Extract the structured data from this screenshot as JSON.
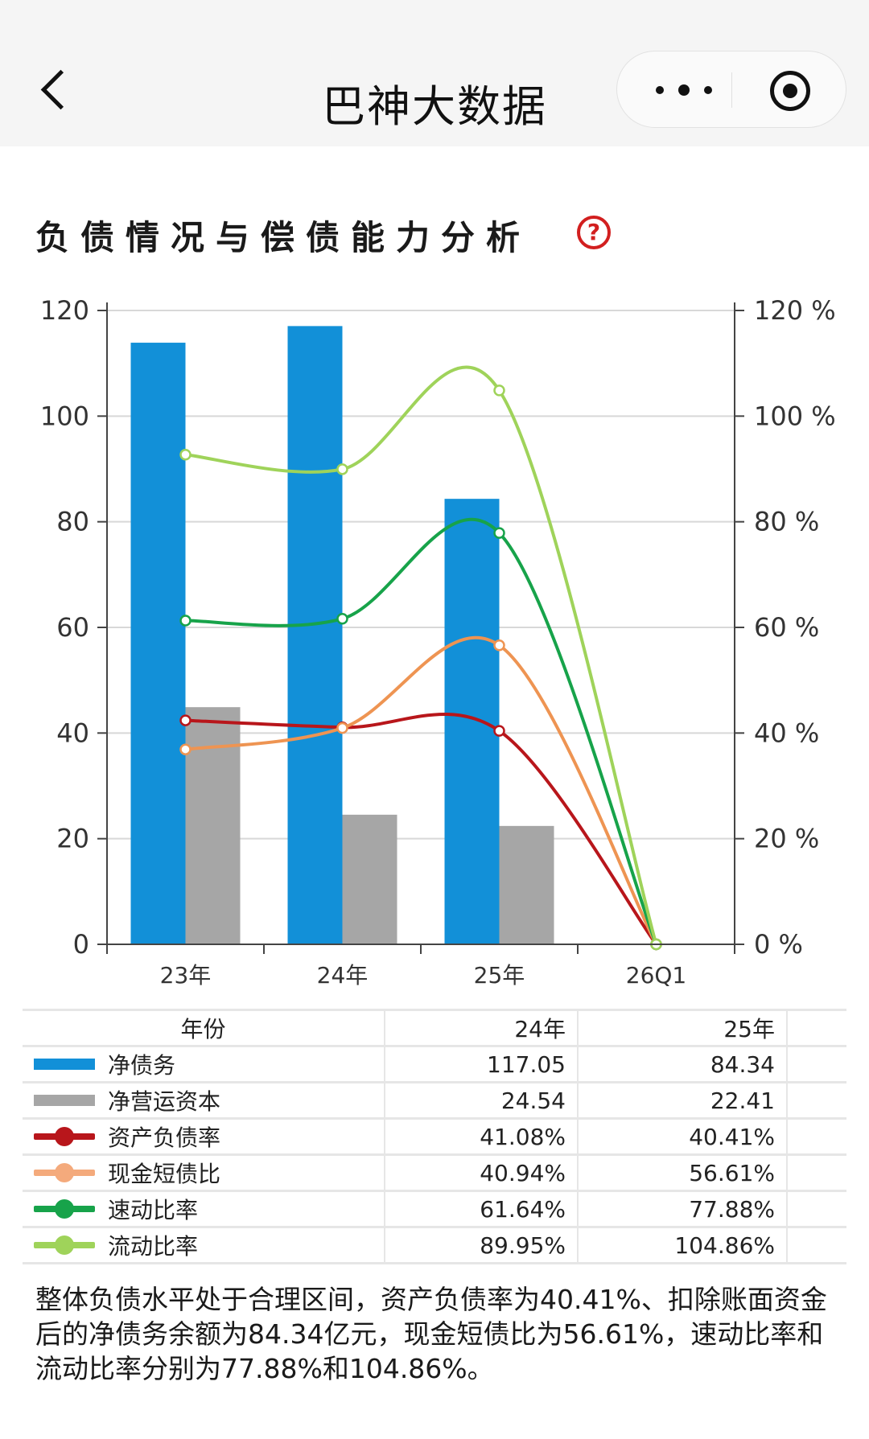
{
  "nav": {
    "title": "巴神大数据"
  },
  "section": {
    "title": "负债情况与偿债能力分析",
    "help_glyph": "?"
  },
  "colors": {
    "net_debt": "#1290d8",
    "working_capital": "#a6a6a6",
    "debt_ratio": "#b8161b",
    "cash_short_debt": "#ee9452",
    "quick_ratio": "#17a34a",
    "current_ratio": "#9fd35a"
  },
  "chart_data": {
    "type": "bar",
    "categories": [
      "23年",
      "24年",
      "25年",
      "26Q1"
    ],
    "y_left": {
      "ticks": [
        "0",
        "20",
        "40",
        "60",
        "80",
        "100",
        "120"
      ],
      "ylim": [
        0,
        120
      ]
    },
    "y_right": {
      "ticks": [
        "0 %",
        "20 %",
        "40 %",
        "60 %",
        "80 %",
        "100 %",
        "120 %"
      ],
      "ylim": [
        0,
        120
      ]
    },
    "bar_series": [
      {
        "name": "净债务",
        "values": [
          113.9,
          117.05,
          84.34,
          0
        ]
      },
      {
        "name": "净营运资本",
        "values": [
          44.9,
          24.54,
          22.41,
          0
        ]
      }
    ],
    "line_series": [
      {
        "name": "资产负债率",
        "values": [
          42.4,
          41.08,
          40.41,
          0
        ]
      },
      {
        "name": "现金短债比",
        "values": [
          36.9,
          40.94,
          56.61,
          0
        ]
      },
      {
        "name": "速动比率",
        "values": [
          61.3,
          61.64,
          77.88,
          0
        ]
      },
      {
        "name": "流动比率",
        "values": [
          92.7,
          89.95,
          104.86,
          0
        ]
      }
    ],
    "grid": true
  },
  "table": {
    "header": {
      "label": "年份",
      "col1": "24年",
      "col2": "25年"
    },
    "rows": [
      {
        "name": "净债务",
        "v1": "117.05",
        "v2": "84.34",
        "kind": "bar",
        "color": "#1290d8"
      },
      {
        "name": "净营运资本",
        "v1": "24.54",
        "v2": "22.41",
        "kind": "bar",
        "color": "#a6a6a6"
      },
      {
        "name": "资产负债率",
        "v1": "41.08%",
        "v2": "40.41%",
        "kind": "line",
        "color": "#b8161b"
      },
      {
        "name": "现金短债比",
        "v1": "40.94%",
        "v2": "56.61%",
        "kind": "line",
        "color": "#f4aa7c"
      },
      {
        "name": "速动比率",
        "v1": "61.64%",
        "v2": "77.88%",
        "kind": "line",
        "color": "#17a34a"
      },
      {
        "name": "流动比率",
        "v1": "89.95%",
        "v2": "104.86%",
        "kind": "line",
        "color": "#9fd35a"
      }
    ]
  },
  "summary": "整体负债水平处于合理区间，资产负债率为40.41%、扣除账面资金后的净债务余额为84.34亿元，现金短债比为56.61%，速动比率和流动比率分别为77.88%和104.86%。"
}
